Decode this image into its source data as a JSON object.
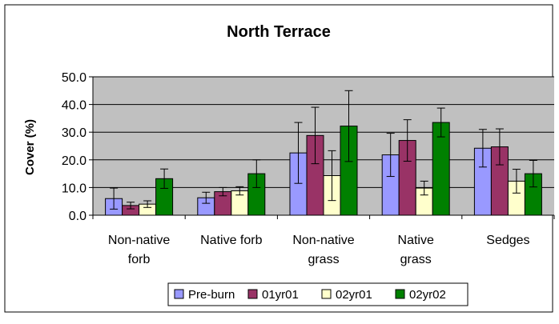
{
  "chart_data": {
    "type": "bar",
    "title": "North Terrace",
    "xlabel": "",
    "ylabel": "Cover (%)",
    "ylim": [
      0,
      50
    ],
    "yticks": [
      "0.0",
      "10.0",
      "20.0",
      "30.0",
      "40.0",
      "50.0"
    ],
    "grid": true,
    "legend_position": "bottom",
    "categories": [
      [
        "Non-native",
        "forb"
      ],
      [
        "Native forb"
      ],
      [
        "Non-native",
        "grass"
      ],
      [
        "Native",
        "grass"
      ],
      [
        "Sedges"
      ]
    ],
    "series": [
      {
        "name": "Pre-burn",
        "color": "#9999ff",
        "values": [
          6.0,
          6.3,
          22.5,
          21.8,
          24.2
        ],
        "errors": [
          3.8,
          2.0,
          11.0,
          7.8,
          6.8
        ]
      },
      {
        "name": "01yr01",
        "color": "#993366",
        "values": [
          3.5,
          8.5,
          28.8,
          27.0,
          24.7
        ],
        "errors": [
          1.2,
          1.5,
          10.2,
          7.5,
          6.5
        ]
      },
      {
        "name": "02yr01",
        "color": "#ffffcc",
        "values": [
          4.0,
          8.8,
          14.3,
          9.8,
          12.3
        ],
        "errors": [
          1.2,
          1.5,
          9.0,
          2.5,
          4.3
        ]
      },
      {
        "name": "02yr02",
        "color": "#008000",
        "values": [
          13.2,
          15.0,
          32.2,
          33.5,
          15.0
        ],
        "errors": [
          3.5,
          5.0,
          12.8,
          5.2,
          4.8
        ]
      }
    ],
    "colors": {
      "plot_bg": "#c0c0c0",
      "gridline": "#000000",
      "border": "#000000"
    }
  }
}
